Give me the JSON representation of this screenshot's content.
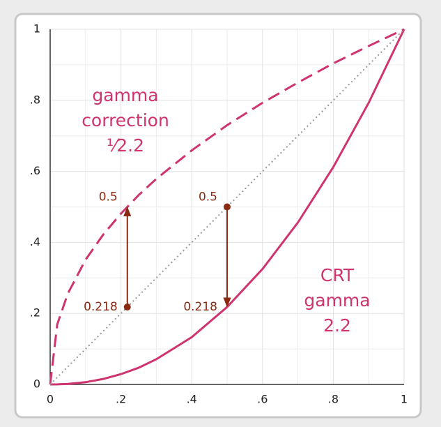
{
  "chart_data": {
    "type": "line",
    "xlim": [
      0,
      1
    ],
    "ylim": [
      0,
      1
    ],
    "xticks": [
      0,
      {
        "value": 0.2,
        "label": ".2"
      },
      {
        "value": 0.4,
        "label": ".4"
      },
      {
        "value": 0.6,
        "label": ".6"
      },
      {
        "value": 0.8,
        "label": ".8"
      },
      1
    ],
    "yticks": [
      0,
      {
        "value": 0.2,
        "label": ".2"
      },
      {
        "value": 0.4,
        "label": ".4"
      },
      {
        "value": 0.6,
        "label": ".6"
      },
      {
        "value": 0.8,
        "label": ".8"
      },
      1
    ],
    "minor_ticks": [
      0.1,
      0.3,
      0.5,
      0.7,
      0.9
    ],
    "grid": true,
    "series": [
      {
        "name": [
          "gamma",
          "correction",
          "¹⁄2.2"
        ],
        "color": "#cf3470",
        "style": "dashed",
        "x": [
          0,
          0.02,
          0.05,
          0.1,
          0.15,
          0.2,
          0.25,
          0.3,
          0.4,
          0.5,
          0.6,
          0.7,
          0.8,
          0.9,
          1
        ],
        "values": [
          0,
          0.169,
          0.256,
          0.351,
          0.422,
          0.481,
          0.533,
          0.579,
          0.659,
          0.73,
          0.793,
          0.85,
          0.904,
          0.953,
          1
        ]
      },
      {
        "name": [
          "CRT",
          "gamma",
          "2.2"
        ],
        "color": "#cf3470",
        "style": "solid",
        "x": [
          0,
          0.02,
          0.05,
          0.1,
          0.15,
          0.2,
          0.25,
          0.3,
          0.4,
          0.5,
          0.6,
          0.7,
          0.8,
          0.9,
          1
        ],
        "values": [
          0,
          0.0002,
          0.0014,
          0.0063,
          0.0154,
          0.029,
          0.047,
          0.071,
          0.133,
          0.218,
          0.325,
          0.456,
          0.612,
          0.793,
          1
        ]
      },
      {
        "color": "#999999",
        "style": "dotted",
        "x": [
          0,
          1
        ],
        "values": [
          0,
          1
        ]
      }
    ],
    "annotations": [
      {
        "x": 0.218,
        "from": 0.218,
        "to": 0.5,
        "color": "#8a2a12"
      },
      {
        "x": 0.5,
        "from": 0.5,
        "to": 0.218,
        "color": "#8a2a12"
      }
    ]
  }
}
